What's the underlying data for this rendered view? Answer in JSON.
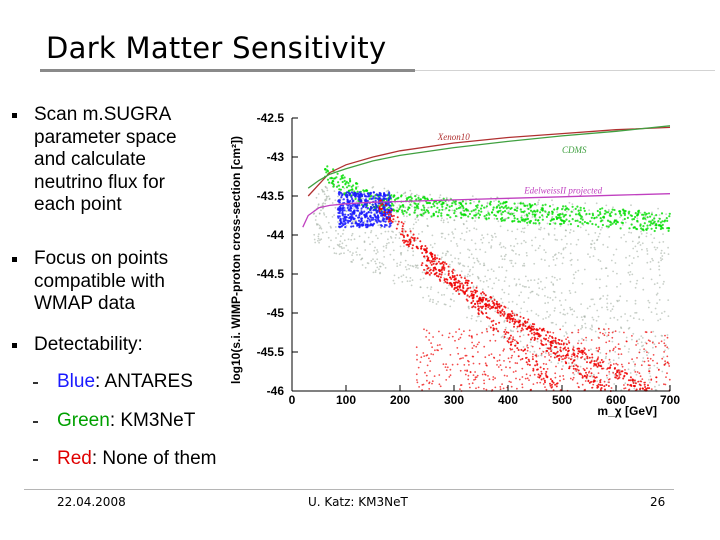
{
  "slide": {
    "title": "Dark Matter Sensitivity",
    "bullets": [
      {
        "lines": [
          "Scan m.SUGRA",
          "parameter space",
          "and calculate",
          "neutrino flux for",
          "each point"
        ]
      },
      {
        "lines": [
          "Focus on points",
          "compatible with",
          "WMAP data"
        ]
      },
      {
        "lines": [
          "Detectability:"
        ]
      }
    ],
    "subitems": [
      {
        "colored": "Blue",
        "rest": ": ANTARES",
        "color": "#1a1aff"
      },
      {
        "colored": "Green",
        "rest": ": KM3NeT",
        "color": "#00a000"
      },
      {
        "colored": "Red",
        "rest": ": None of them",
        "color": "#e00000"
      }
    ],
    "footer": {
      "date": "22.04.2008",
      "author": "U. Katz: KM3NeT",
      "page": "26"
    }
  },
  "chart_data": {
    "type": "scatter",
    "ylabel": "log10(s.i. WIMP-proton cross-section [cm²])",
    "xlabel": "m_χ [GeV]",
    "xlim": [
      0,
      700
    ],
    "ylim": [
      -46,
      -42.5
    ],
    "x_ticks": [
      "0",
      "100",
      "200",
      "300",
      "400",
      "500",
      "600",
      "700"
    ],
    "y_ticks": [
      "-42.5",
      "-43",
      "-43.5",
      "-44",
      "-44.5",
      "-45",
      "-45.5",
      "-46"
    ],
    "curves": [
      {
        "name": "Xenon10",
        "color": "#b03030",
        "x": [
          30,
          50,
          70,
          100,
          150,
          200,
          300,
          400,
          500,
          600,
          700
        ],
        "y": [
          -43.5,
          -43.35,
          -43.2,
          -43.1,
          -43.0,
          -42.92,
          -42.82,
          -42.75,
          -42.7,
          -42.65,
          -42.62
        ]
      },
      {
        "name": "CDMS",
        "color": "#40a040",
        "x": [
          30,
          50,
          70,
          100,
          150,
          200,
          300,
          400,
          500,
          600,
          700
        ],
        "y": [
          -43.4,
          -43.3,
          -43.22,
          -43.15,
          -43.05,
          -42.98,
          -42.88,
          -42.8,
          -42.73,
          -42.67,
          -42.6
        ]
      },
      {
        "name": "EdelweissII projected",
        "color": "#c040c0",
        "x": [
          20,
          30,
          50,
          70,
          100,
          150,
          200,
          300,
          400,
          500,
          600,
          700
        ],
        "y": [
          -43.9,
          -43.75,
          -43.65,
          -43.62,
          -43.6,
          -43.58,
          -43.57,
          -43.55,
          -43.53,
          -43.51,
          -43.49,
          -43.47
        ]
      }
    ],
    "colors": {
      "blue": "#1a1aff",
      "green": "#00dd00",
      "red": "#ee0000",
      "grey": "#9aa89a"
    }
  }
}
